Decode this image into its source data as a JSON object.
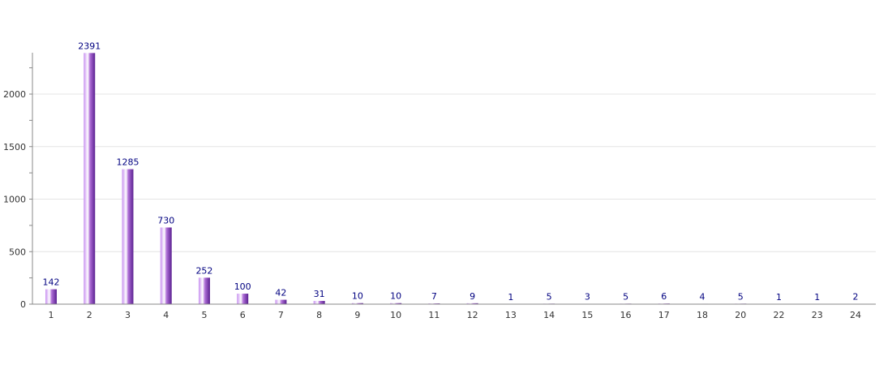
{
  "chart_data": {
    "type": "bar",
    "title": "",
    "xlabel": "",
    "ylabel": "",
    "categories": [
      "1",
      "2",
      "3",
      "4",
      "5",
      "6",
      "7",
      "8",
      "9",
      "10",
      "11",
      "12",
      "13",
      "14",
      "15",
      "16",
      "17",
      "18",
      "20",
      "22",
      "23",
      "24"
    ],
    "values": [
      142,
      2391,
      1285,
      730,
      252,
      100,
      42,
      31,
      10,
      10,
      7,
      9,
      1,
      5,
      3,
      5,
      6,
      4,
      5,
      1,
      1,
      2
    ],
    "yticks": [
      0,
      500,
      1000,
      1500,
      2000
    ],
    "ylim": [
      0,
      2400
    ],
    "grid": true,
    "colors": {
      "bar_light": "#c890f0",
      "bar_dark": "#5a2090",
      "label": "#000080",
      "axis": "#888888",
      "grid": "#e4e4e4",
      "tick_text": "#333333"
    }
  }
}
